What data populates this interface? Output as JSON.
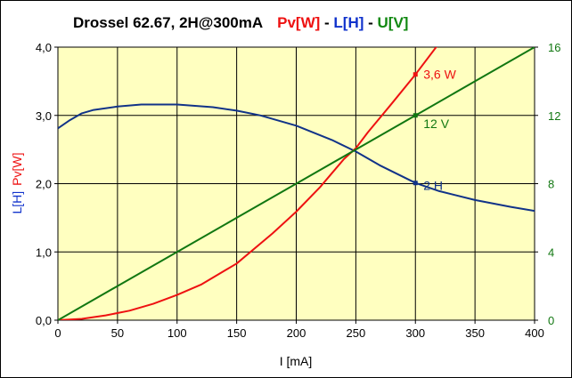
{
  "chart_data": {
    "type": "line",
    "title": {
      "prefix": "Drossel 62.67, 2H@300mA",
      "part_pv": "Pv[W]",
      "sep1": " - ",
      "part_l": "L[H]",
      "sep2": " - ",
      "part_u": "U[V]"
    },
    "xlabel": "I [mA]",
    "ylabel_left": {
      "part_l": "L[H]",
      "part_pv": "Pv[W]"
    },
    "xlim": [
      0,
      400
    ],
    "ylim_left": [
      0,
      4
    ],
    "ylim_right": [
      0,
      16
    ],
    "x_ticks": [
      0,
      50,
      100,
      150,
      200,
      250,
      300,
      350,
      400
    ],
    "x_tick_labels": [
      "0",
      "50",
      "100",
      "150",
      "200",
      "250",
      "300",
      "350",
      "400"
    ],
    "y_left_ticks": [
      0,
      1,
      2,
      3,
      4
    ],
    "y_left_tick_labels": [
      "0,0",
      "1,0",
      "2,0",
      "3,0",
      "4,0"
    ],
    "y_right_ticks": [
      0,
      4,
      8,
      12,
      16
    ],
    "y_right_tick_labels": [
      "0",
      "4",
      "8",
      "12",
      "16"
    ],
    "grid": true,
    "colors": {
      "plot_bg": "#ffffc0",
      "grid": "#000000",
      "pv": "#ee1111",
      "l": "#113388",
      "u": "#117711",
      "right_axis_text": "#117711"
    },
    "series": [
      {
        "key": "L",
        "axis": "left",
        "color": "#113388",
        "x": [
          0,
          10,
          20,
          30,
          50,
          70,
          100,
          130,
          150,
          170,
          200,
          230,
          250,
          270,
          300,
          320,
          350,
          380,
          400
        ],
        "y": [
          2.81,
          2.93,
          3.03,
          3.08,
          3.13,
          3.16,
          3.16,
          3.12,
          3.07,
          3.0,
          2.85,
          2.64,
          2.47,
          2.27,
          2.01,
          1.89,
          1.76,
          1.66,
          1.6
        ]
      },
      {
        "key": "Pv",
        "axis": "left",
        "color": "#ee1111",
        "x": [
          0,
          20,
          40,
          60,
          80,
          100,
          120,
          150,
          180,
          200,
          220,
          240,
          250,
          260,
          280,
          300,
          320
        ],
        "y": [
          0.0,
          0.02,
          0.07,
          0.14,
          0.24,
          0.37,
          0.52,
          0.83,
          1.27,
          1.59,
          1.95,
          2.36,
          2.52,
          2.75,
          3.17,
          3.6,
          4.06
        ]
      },
      {
        "key": "U",
        "axis": "right",
        "color": "#117711",
        "x": [
          0,
          50,
          100,
          150,
          200,
          250,
          300,
          350,
          400
        ],
        "y": [
          0,
          2,
          4,
          6,
          8,
          10,
          12,
          14,
          16
        ]
      }
    ],
    "annotations": [
      {
        "text": "3,6 W",
        "x": 300,
        "y": 3.6,
        "axis": "left",
        "color": "#ee1111"
      },
      {
        "text": "12 V",
        "x": 300,
        "y": 12,
        "axis": "right",
        "color": "#117711"
      },
      {
        "text": "2 H",
        "x": 300,
        "y": 2.01,
        "axis": "left",
        "color": "#113388"
      }
    ]
  }
}
